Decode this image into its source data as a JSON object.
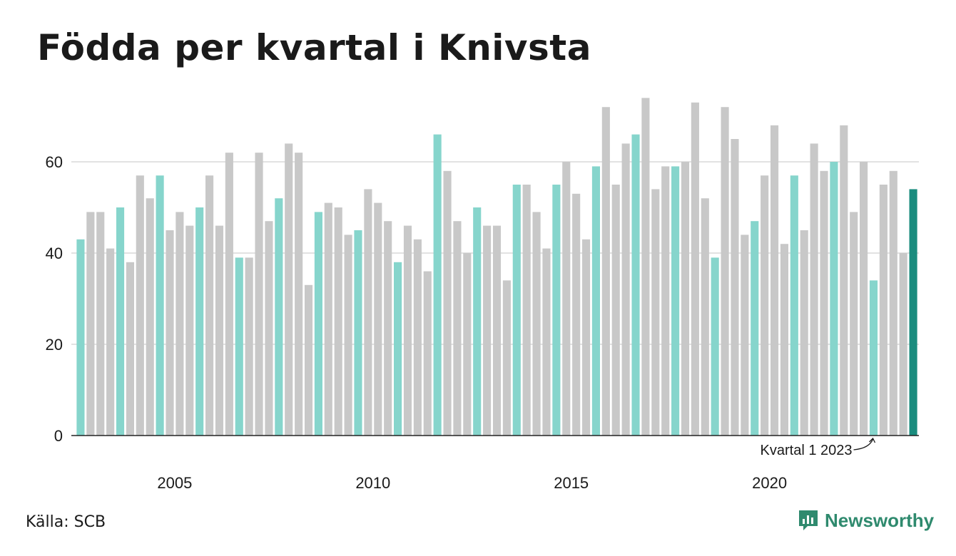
{
  "title": "Födda per kvartal i Knivsta",
  "source": "Källa: SCB",
  "brand": {
    "name": "Newsworthy",
    "icon": "newsworthy-logo-icon",
    "color": "#2f8a6e"
  },
  "colors": {
    "bar_default": "#c8c8c8",
    "bar_q1": "#86d5cc",
    "bar_latest": "#1a8c7e",
    "gridline": "#e2e2e2",
    "axis": "#222222"
  },
  "chart_data": {
    "type": "bar",
    "ylim": [
      0,
      75
    ],
    "y_ticks": [
      0,
      20,
      40,
      60
    ],
    "x_tick_labels": [
      "2005",
      "2010",
      "2015",
      "2020"
    ],
    "highlight": "Q1 bars colored teal; latest quarter emphasized",
    "annotation": {
      "text": "Kvartal 1 2023",
      "points_to": "2023 Q1"
    },
    "categories": [
      "2003 Q1",
      "2003 Q2",
      "2003 Q3",
      "2003 Q4",
      "2004 Q1",
      "2004 Q2",
      "2004 Q3",
      "2004 Q4",
      "2005 Q1",
      "2005 Q2",
      "2005 Q3",
      "2005 Q4",
      "2006 Q1",
      "2006 Q2",
      "2006 Q3",
      "2006 Q4",
      "2007 Q1",
      "2007 Q2",
      "2007 Q3",
      "2007 Q4",
      "2008 Q1",
      "2008 Q2",
      "2008 Q3",
      "2008 Q4",
      "2009 Q1",
      "2009 Q2",
      "2009 Q3",
      "2009 Q4",
      "2010 Q1",
      "2010 Q2",
      "2010 Q3",
      "2010 Q4",
      "2011 Q1",
      "2011 Q2",
      "2011 Q3",
      "2011 Q4",
      "2012 Q1",
      "2012 Q2",
      "2012 Q3",
      "2012 Q4",
      "2013 Q1",
      "2013 Q2",
      "2013 Q3",
      "2013 Q4",
      "2014 Q1",
      "2014 Q2",
      "2014 Q3",
      "2014 Q4",
      "2015 Q1",
      "2015 Q2",
      "2015 Q3",
      "2015 Q4",
      "2016 Q1",
      "2016 Q2",
      "2016 Q3",
      "2016 Q4",
      "2017 Q1",
      "2017 Q2",
      "2017 Q3",
      "2017 Q4",
      "2018 Q1",
      "2018 Q2",
      "2018 Q3",
      "2018 Q4",
      "2019 Q1",
      "2019 Q2",
      "2019 Q3",
      "2019 Q4",
      "2020 Q1",
      "2020 Q2",
      "2020 Q3",
      "2020 Q4",
      "2021 Q1",
      "2021 Q2",
      "2021 Q3",
      "2021 Q4",
      "2022 Q1",
      "2022 Q2",
      "2022 Q3",
      "2022 Q4",
      "2023 Q1",
      "2023 Q2",
      "2023 Q3",
      "2023 Q4",
      "2024 Q1"
    ],
    "values": [
      43,
      49,
      49,
      41,
      50,
      38,
      57,
      52,
      57,
      45,
      49,
      46,
      50,
      57,
      46,
      62,
      39,
      39,
      62,
      47,
      52,
      64,
      62,
      33,
      49,
      51,
      50,
      44,
      45,
      54,
      51,
      47,
      38,
      46,
      43,
      36,
      66,
      58,
      47,
      40,
      50,
      46,
      46,
      34,
      55,
      55,
      49,
      41,
      55,
      60,
      53,
      43,
      59,
      72,
      55,
      64,
      66,
      74,
      54,
      59,
      59,
      60,
      73,
      52,
      39,
      72,
      65,
      44,
      47,
      57,
      68,
      42,
      57,
      45,
      64,
      58,
      60,
      68,
      49,
      60,
      34,
      55,
      58,
      40,
      54
    ]
  }
}
